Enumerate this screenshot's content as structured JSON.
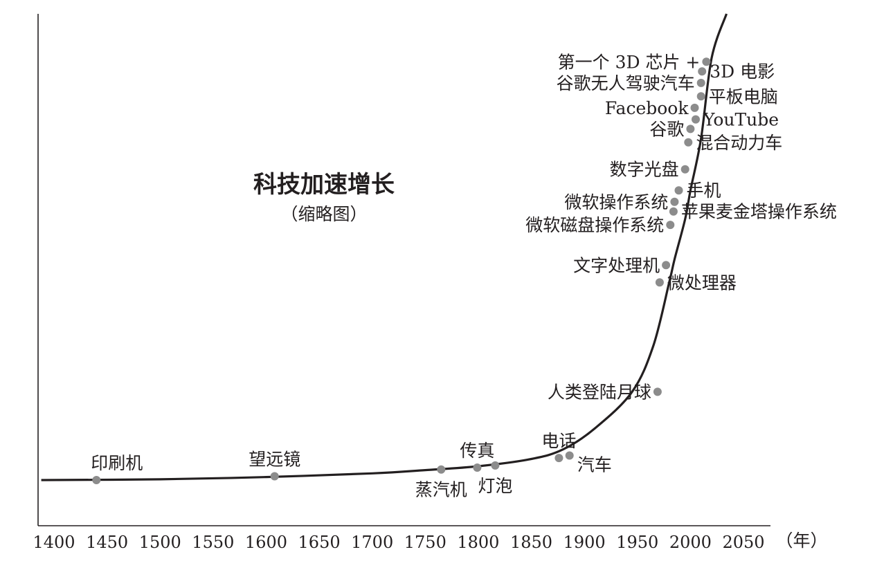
{
  "chart_data": {
    "type": "line",
    "title": "科技加速增长",
    "subtitle": "（缩略图）",
    "xlabel": "（年）",
    "ylabel": "",
    "xlim": [
      1400,
      2050
    ],
    "x_ticks": [
      1400,
      1450,
      1500,
      1550,
      1600,
      1650,
      1700,
      1750,
      1800,
      1850,
      1900,
      1950,
      2000,
      2050
    ],
    "grid": false,
    "legend": "none",
    "colors": {
      "curve": "#231f20",
      "marker": "#8c8c8c",
      "axis": "#231f20",
      "text": "#231f20"
    },
    "curve": [
      {
        "year": 1388,
        "level": 0
      },
      {
        "year": 1500,
        "level": 0.4
      },
      {
        "year": 1600,
        "level": 1.6
      },
      {
        "year": 1700,
        "level": 3.5
      },
      {
        "year": 1750,
        "level": 5.2
      },
      {
        "year": 1800,
        "level": 7.2
      },
      {
        "year": 1850,
        "level": 11
      },
      {
        "year": 1880,
        "level": 16
      },
      {
        "year": 1910,
        "level": 27
      },
      {
        "year": 1945,
        "level": 46
      },
      {
        "year": 1965,
        "level": 70
      },
      {
        "year": 1980,
        "level": 103
      },
      {
        "year": 1985,
        "level": 115
      },
      {
        "year": 1995,
        "level": 136
      },
      {
        "year": 2000,
        "level": 151
      },
      {
        "year": 2010,
        "level": 178
      },
      {
        "year": 2020,
        "level": 220
      },
      {
        "year": 2034,
        "level": 243
      }
    ],
    "milestones": [
      {
        "label": "印刷机",
        "year": 1440,
        "level": 0,
        "side": "above"
      },
      {
        "label": "望远镜",
        "year": 1608,
        "level": 2,
        "side": "above"
      },
      {
        "label": "蒸汽机",
        "year": 1765,
        "level": 5.5,
        "side": "below"
      },
      {
        "label": "传真",
        "year": 1799,
        "level": 6.5,
        "side": "above"
      },
      {
        "label": "灯泡",
        "year": 1816,
        "level": 7.6,
        "side": "below"
      },
      {
        "label": "电话",
        "year": 1876,
        "level": 11.5,
        "side": "above"
      },
      {
        "label": "汽车",
        "year": 1886,
        "level": 12.8,
        "side": "right"
      },
      {
        "label": "人类登陆月球",
        "year": 1969,
        "level": 46,
        "side": "left"
      },
      {
        "label": "微处理器",
        "year": 1971,
        "level": 103,
        "side": "right"
      },
      {
        "label": "文字处理机",
        "year": 1977,
        "level": 112,
        "side": "left"
      },
      {
        "label": "微软磁盘操作系统",
        "year": 1981,
        "level": 133,
        "side": "left"
      },
      {
        "label": "苹果麦金塔操作系统",
        "year": 1984,
        "level": 140,
        "side": "right"
      },
      {
        "label": "微软操作系统",
        "year": 1985,
        "level": 145,
        "side": "left"
      },
      {
        "label": "手机",
        "year": 1989,
        "level": 151,
        "side": "right"
      },
      {
        "label": "数字光盘",
        "year": 1995,
        "level": 162,
        "side": "left"
      },
      {
        "label": "混合动力车",
        "year": 1998,
        "level": 176,
        "side": "right"
      },
      {
        "label": "谷歌",
        "year": 2000,
        "level": 183,
        "side": "left"
      },
      {
        "label": "YouTube",
        "year": 2005,
        "level": 188,
        "side": "right"
      },
      {
        "label": "Facebook",
        "year": 2004,
        "level": 194,
        "side": "left"
      },
      {
        "label": "平板电脑",
        "year": 2010,
        "level": 200,
        "side": "right"
      },
      {
        "label": "谷歌无人驾驶汽车",
        "year": 2010,
        "level": 207,
        "side": "left"
      },
      {
        "label": "3D 电影",
        "year": 2011,
        "level": 213,
        "side": "right"
      },
      {
        "label": "第一个 3D 芯片 +",
        "year": 2015,
        "level": 218,
        "side": "left"
      }
    ]
  }
}
